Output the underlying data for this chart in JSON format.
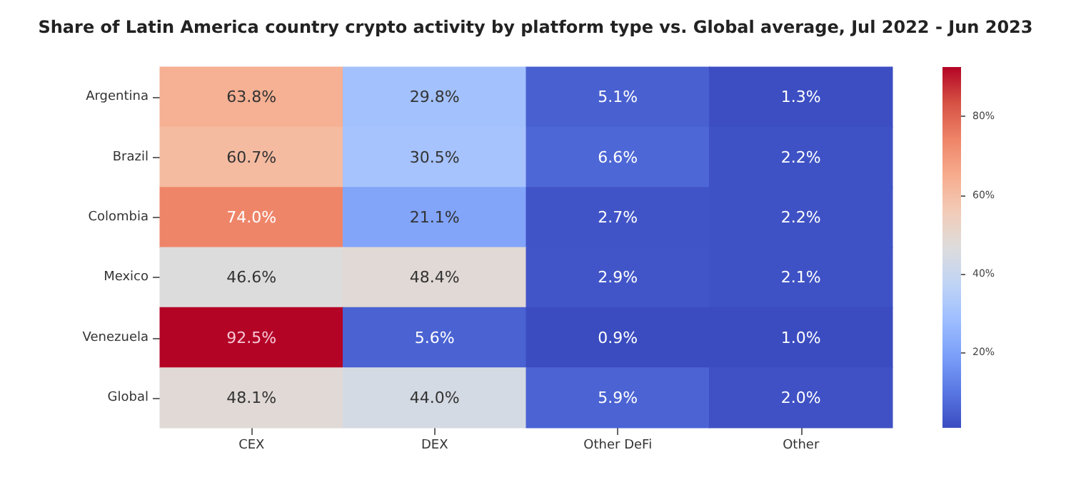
{
  "chart_data": {
    "type": "heatmap",
    "title": "Share of Latin America country crypto activity by platform type vs. Global average, Jul 2022 - Jun 2023",
    "categories": [
      "CEX",
      "DEX",
      "Other DeFi",
      "Other"
    ],
    "y_categories": [
      "Argentina",
      "Brazil",
      "Colombia",
      "Mexico",
      "Venezuela",
      "Global"
    ],
    "cells": [
      [
        63.8,
        29.8,
        5.1,
        1.3
      ],
      [
        60.7,
        30.5,
        6.6,
        2.2
      ],
      [
        74.0,
        21.1,
        2.7,
        2.2
      ],
      [
        46.6,
        48.4,
        2.9,
        2.1
      ],
      [
        92.5,
        5.6,
        0.9,
        1.0
      ],
      [
        48.1,
        44.0,
        5.9,
        2.0
      ]
    ],
    "cell_labels": [
      [
        "63.8%",
        "29.8%",
        "5.1%",
        "1.3%"
      ],
      [
        "60.7%",
        "30.5%",
        "6.6%",
        "2.2%"
      ],
      [
        "74.0%",
        "21.1%",
        "2.7%",
        "2.2%"
      ],
      [
        "46.6%",
        "48.4%",
        "2.9%",
        "2.1%"
      ],
      [
        "92.5%",
        "5.6%",
        "0.9%",
        "1.0%"
      ],
      [
        "48.1%",
        "44.0%",
        "5.9%",
        "2.0%"
      ]
    ],
    "clim": [
      0.9,
      92.5
    ],
    "cticks": [
      {
        "value": 20,
        "label": "20%"
      },
      {
        "value": 40,
        "label": "40%"
      },
      {
        "value": 60,
        "label": "60%"
      },
      {
        "value": 80,
        "label": "80%"
      }
    ]
  }
}
